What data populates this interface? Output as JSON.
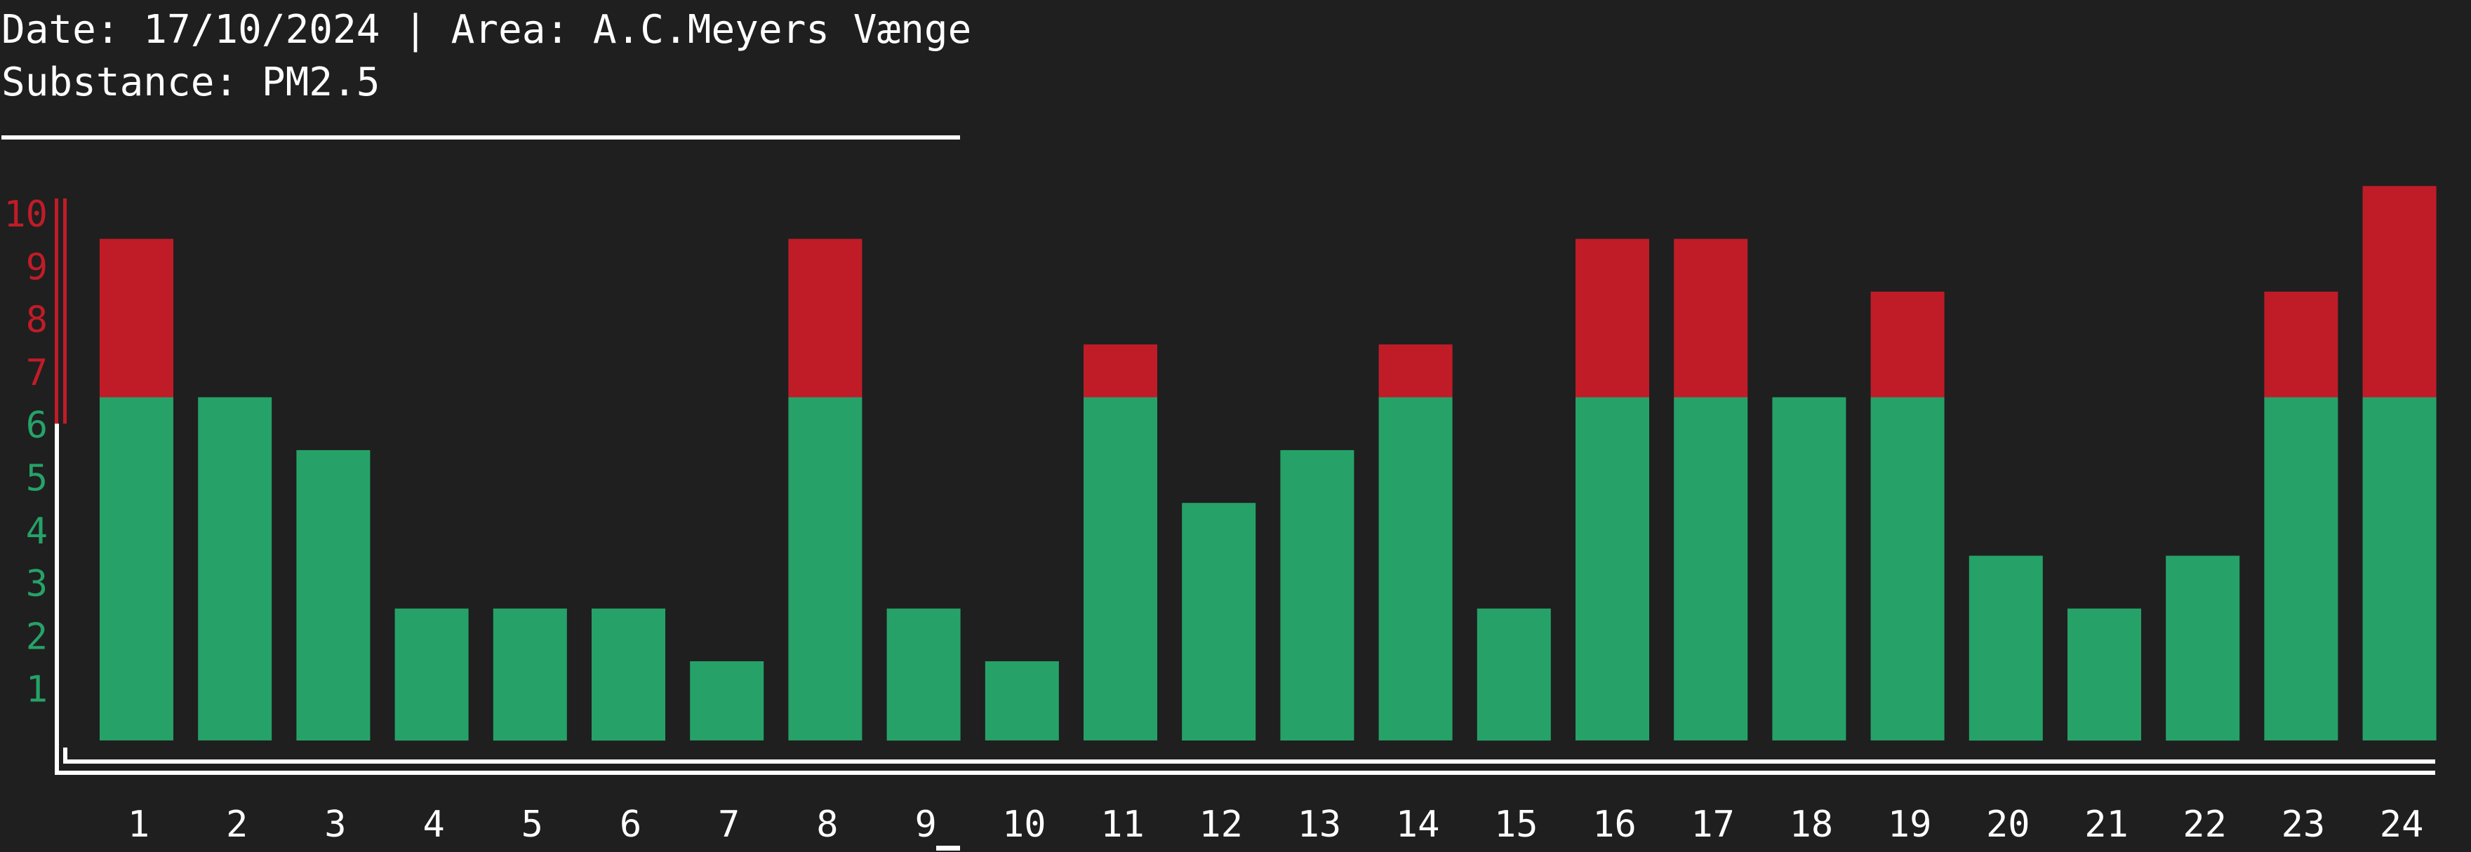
{
  "header": {
    "date_line": "Date: 17/10/2024 | Area: A.C.Meyers Vænge",
    "substance_line": "Substance: PM2.5"
  },
  "colors": {
    "background": "#1f1f1f",
    "safe": "#26a269",
    "exceed": "#c01c28",
    "text": "#ffffff"
  },
  "chart_data": {
    "type": "bar",
    "stacked": true,
    "categories": [
      "1",
      "2",
      "3",
      "4",
      "5",
      "6",
      "7",
      "8",
      "9",
      "10",
      "11",
      "12",
      "13",
      "14",
      "15",
      "16",
      "17",
      "18",
      "19",
      "20",
      "21",
      "22",
      "23",
      "24"
    ],
    "values": [
      9,
      6,
      5,
      2,
      2,
      2,
      1,
      9,
      2,
      1,
      7,
      4,
      5,
      7,
      2,
      9,
      9,
      6,
      8,
      3,
      2,
      3,
      8,
      10
    ],
    "threshold": 6,
    "series": [
      {
        "color": "#26a269",
        "values": [
          6,
          6,
          5,
          2,
          2,
          2,
          1,
          6,
          2,
          1,
          6,
          4,
          5,
          6,
          2,
          6,
          6,
          6,
          6,
          3,
          2,
          3,
          6,
          6
        ]
      },
      {
        "color": "#c01c28",
        "values": [
          3,
          0,
          0,
          0,
          0,
          0,
          0,
          3,
          0,
          0,
          1,
          0,
          0,
          1,
          0,
          3,
          3,
          0,
          2,
          0,
          0,
          0,
          2,
          4
        ]
      }
    ],
    "ytick_labels": [
      "1",
      "2",
      "3",
      "4",
      "5",
      "6",
      "7",
      "8",
      "9",
      "10"
    ],
    "ylim": [
      0,
      10
    ],
    "highlighted_category": "9",
    "title": "",
    "xlabel": "",
    "ylabel": "",
    "grid": false,
    "legend": "none"
  }
}
